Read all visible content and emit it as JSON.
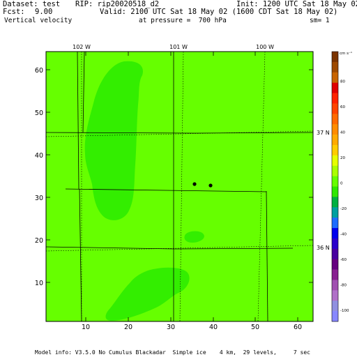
{
  "header": {
    "dataset": "Dataset: test",
    "rip": "RIP: rip20020518_d2",
    "init": "Init: 1200 UTC Sat 18 May 02",
    "fcst_label": "Fcst:",
    "fcst_value": "9.00",
    "valid": "Valid: 2100 UTC Sat 18 May 02 (1600 CDT Sat 18 May 02)",
    "field": "Vertical velocity",
    "pressure": "at pressure =  700 hPa",
    "smoothing": "sm= 1"
  },
  "map": {
    "x_ticks": [
      "10",
      "20",
      "30",
      "40",
      "50",
      "60"
    ],
    "y_ticks": [
      "10",
      "20",
      "30",
      "40",
      "50",
      "60"
    ],
    "longitude_labels": [
      "102 W",
      "101 W",
      "100 W"
    ],
    "latitude_labels": [
      "37 N",
      "36 N"
    ],
    "fill_color": "#66ff00",
    "updraft_color": "#33ee00",
    "station_markers": 2
  },
  "colorbar": {
    "unit": "cm s⁻¹",
    "labels": [
      "80",
      "60",
      "40",
      "20",
      "0",
      "-20",
      "-40",
      "-60",
      "-80",
      "-100"
    ],
    "colors": [
      "#7a3300",
      "#9e4a00",
      "#c86400",
      "#e00000",
      "#ff2200",
      "#ff4400",
      "#ff6a00",
      "#ff8c00",
      "#ffaa00",
      "#ffcc00",
      "#e6ff00",
      "#aaff00",
      "#66ff00",
      "#2ee800",
      "#00b040",
      "#00a0a0",
      "#1e6cff",
      "#0000ee",
      "#2a00cc",
      "#4800a0",
      "#660080",
      "#882090",
      "#a050b0",
      "#b070c8",
      "#9090e0",
      "#8888ff"
    ]
  },
  "footer": {
    "model_info": "Model info: V3.5.0 No Cumulus Blackadar  Simple ice    4 km,  29 levels,     7 sec"
  }
}
